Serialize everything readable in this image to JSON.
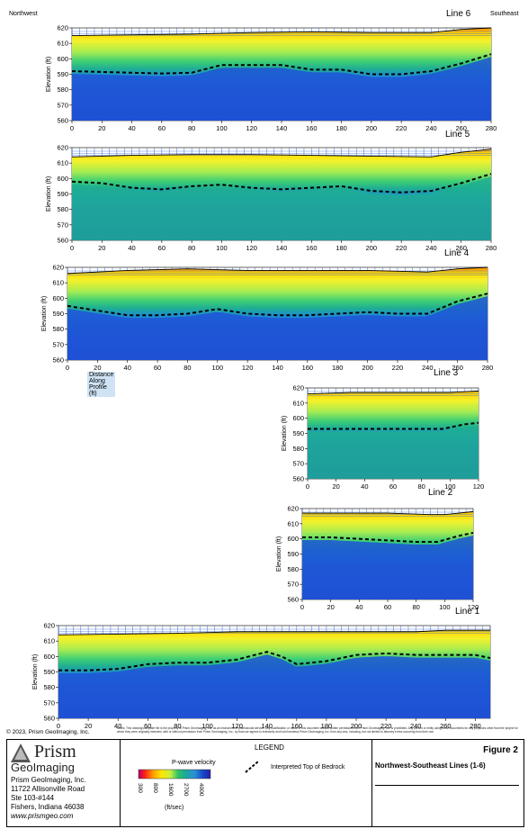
{
  "header": {
    "left": "Northwest",
    "right": "Southeast"
  },
  "chart_data": [
    {
      "type": "heatmap",
      "title": "Line 6",
      "xlabel": "",
      "ylabel": "Elevation (ft)",
      "xlim": [
        0,
        280
      ],
      "ylim": [
        560,
        620
      ],
      "xticks": [
        "0",
        "20",
        "40",
        "60",
        "80",
        "100",
        "120",
        "140",
        "160",
        "180",
        "200",
        "220",
        "240",
        "260",
        "280"
      ],
      "yticks": [
        "560",
        "570",
        "580",
        "590",
        "600",
        "610",
        "620"
      ],
      "surface": {
        "x": [
          0,
          40,
          80,
          120,
          160,
          200,
          240,
          260,
          280
        ],
        "y": [
          615,
          615.5,
          616,
          617,
          617.5,
          617,
          617,
          619,
          620
        ]
      },
      "bedrock": {
        "x": [
          0,
          20,
          40,
          60,
          80,
          100,
          120,
          140,
          160,
          180,
          200,
          220,
          240,
          260,
          270,
          280
        ],
        "y": [
          592,
          591.5,
          591,
          590.5,
          591,
          596,
          596,
          596,
          593,
          593,
          590,
          590,
          592,
          597,
          600,
          603
        ]
      }
    },
    {
      "type": "heatmap",
      "title": "Line 5",
      "xlabel": "",
      "ylabel": "Elevation (ft)",
      "xlim": [
        0,
        280
      ],
      "ylim": [
        560,
        620
      ],
      "xticks": [
        "0",
        "20",
        "40",
        "60",
        "80",
        "100",
        "120",
        "140",
        "160",
        "180",
        "200",
        "220",
        "240",
        "260",
        "280"
      ],
      "yticks": [
        "560",
        "570",
        "580",
        "590",
        "600",
        "610",
        "620"
      ],
      "surface": {
        "x": [
          0,
          40,
          80,
          120,
          160,
          200,
          240,
          260,
          280
        ],
        "y": [
          614,
          615,
          615.5,
          615.5,
          615,
          614.5,
          614,
          617,
          619
        ]
      },
      "bedrock": {
        "x": [
          0,
          20,
          40,
          60,
          80,
          100,
          120,
          140,
          160,
          180,
          200,
          220,
          240,
          260,
          280
        ],
        "y": [
          598,
          597,
          594,
          593,
          595,
          596,
          594,
          593,
          594,
          595,
          592,
          591,
          592,
          597,
          603
        ]
      }
    },
    {
      "type": "heatmap",
      "title": "Line 4",
      "xlabel": "Distance Along Profile (ft)",
      "ylabel": "Elevation (ft)",
      "xlim": [
        0,
        280
      ],
      "ylim": [
        560,
        620
      ],
      "xticks": [
        "0",
        "20",
        "40",
        "60",
        "80",
        "100",
        "120",
        "140",
        "160",
        "180",
        "200",
        "220",
        "240",
        "260",
        "280"
      ],
      "yticks": [
        "560",
        "570",
        "580",
        "590",
        "600",
        "610",
        "620"
      ],
      "surface": {
        "x": [
          0,
          40,
          80,
          120,
          160,
          200,
          240,
          260,
          280
        ],
        "y": [
          616,
          618,
          619,
          618,
          618,
          618,
          617,
          619,
          620
        ]
      },
      "bedrock": {
        "x": [
          0,
          20,
          40,
          60,
          80,
          100,
          120,
          140,
          160,
          180,
          200,
          220,
          240,
          260,
          280
        ],
        "y": [
          595,
          592,
          589,
          589,
          590,
          593,
          590,
          589,
          589,
          590,
          591,
          590,
          590,
          598,
          603
        ]
      }
    },
    {
      "type": "heatmap",
      "title": "Line 3",
      "xlabel": "",
      "ylabel": "Elevation (ft)",
      "xlim": [
        0,
        120
      ],
      "ylim": [
        560,
        620
      ],
      "xticks": [
        "0",
        "20",
        "40",
        "60",
        "80",
        "100",
        "120"
      ],
      "yticks": [
        "560",
        "570",
        "580",
        "590",
        "600",
        "610",
        "620"
      ],
      "surface": {
        "x": [
          0,
          30,
          60,
          90,
          100,
          120
        ],
        "y": [
          616,
          617,
          617,
          617,
          617,
          618
        ]
      },
      "bedrock": {
        "x": [
          0,
          20,
          40,
          60,
          80,
          95,
          110,
          120
        ],
        "y": [
          593,
          593,
          593,
          593,
          593,
          593,
          596,
          597
        ]
      }
    },
    {
      "type": "heatmap",
      "title": "Line 2",
      "xlabel": "",
      "ylabel": "Elevation (ft)",
      "xlim": [
        0,
        120
      ],
      "ylim": [
        560,
        620
      ],
      "xticks": [
        "0",
        "20",
        "40",
        "60",
        "80",
        "100",
        "120"
      ],
      "yticks": [
        "560",
        "570",
        "580",
        "590",
        "600",
        "610",
        "620"
      ],
      "surface": {
        "x": [
          0,
          30,
          60,
          90,
          100,
          120
        ],
        "y": [
          617,
          617,
          617,
          616,
          616,
          618
        ]
      },
      "bedrock": {
        "x": [
          0,
          20,
          40,
          60,
          80,
          95,
          110,
          120
        ],
        "y": [
          601,
          601,
          600,
          599,
          598,
          598,
          602,
          604
        ]
      }
    },
    {
      "type": "heatmap",
      "title": "Line 1",
      "xlabel": "",
      "ylabel": "Elevation (ft)",
      "xlim": [
        0,
        290
      ],
      "ylim": [
        560,
        620
      ],
      "xticks": [
        "0",
        "20",
        "40",
        "60",
        "80",
        "100",
        "120",
        "140",
        "160",
        "180",
        "200",
        "220",
        "240",
        "260",
        "280"
      ],
      "yticks": [
        "560",
        "570",
        "580",
        "590",
        "600",
        "610",
        "620"
      ],
      "surface": {
        "x": [
          0,
          40,
          80,
          120,
          160,
          200,
          240,
          260,
          290
        ],
        "y": [
          614,
          614.5,
          615,
          616,
          616,
          616,
          616,
          617,
          617
        ]
      },
      "bedrock": {
        "x": [
          0,
          20,
          40,
          60,
          80,
          100,
          120,
          140,
          150,
          160,
          180,
          200,
          220,
          240,
          260,
          280,
          290
        ],
        "y": [
          591,
          591,
          592,
          595,
          596,
          596,
          598,
          603,
          600,
          595,
          597,
          601,
          602,
          601,
          601,
          601,
          599
        ]
      }
    }
  ],
  "footer": {
    "copyright": "© 2023, Prism GeoImaging, Inc.",
    "notes": "Notes: This drawing/computer file is the property of Prism GeoImaging, Inc. as an instrument of professional service. Any modification or reuse of this document without written permission from Prism GeoImaging, Inc. is prohibited. Any person or entity using these documents for any purposes other than the project for which they were originally intended, with or without permission from Prism GeoImaging, Inc., by that use agrees to indemnify and hold harmless Prism GeoImaging, Inc. from any loss, including, but not limited to attorney's fees occurring from their use.",
    "logo_line1": "Prism",
    "logo_line2": "GeoImaging",
    "company": "Prism GeoImaging, Inc.",
    "address1": "11722 Allisonville Road",
    "address2": "Ste 103-#144",
    "address3": "Fishers, Indiana 46038",
    "website": "www.prismgeo.com",
    "legend_title": "LEGEND",
    "pwave_label": "P-wave velocity",
    "pwave_ticks": [
      "300",
      "800",
      "1600",
      "2700",
      "4000"
    ],
    "pwave_units": "(ft/sec)",
    "bedrock_label": "Interpreted Top of Bedrock",
    "figure": "Figure 2",
    "figure_title": "Northwest-Southeast Lines (1-6)"
  }
}
